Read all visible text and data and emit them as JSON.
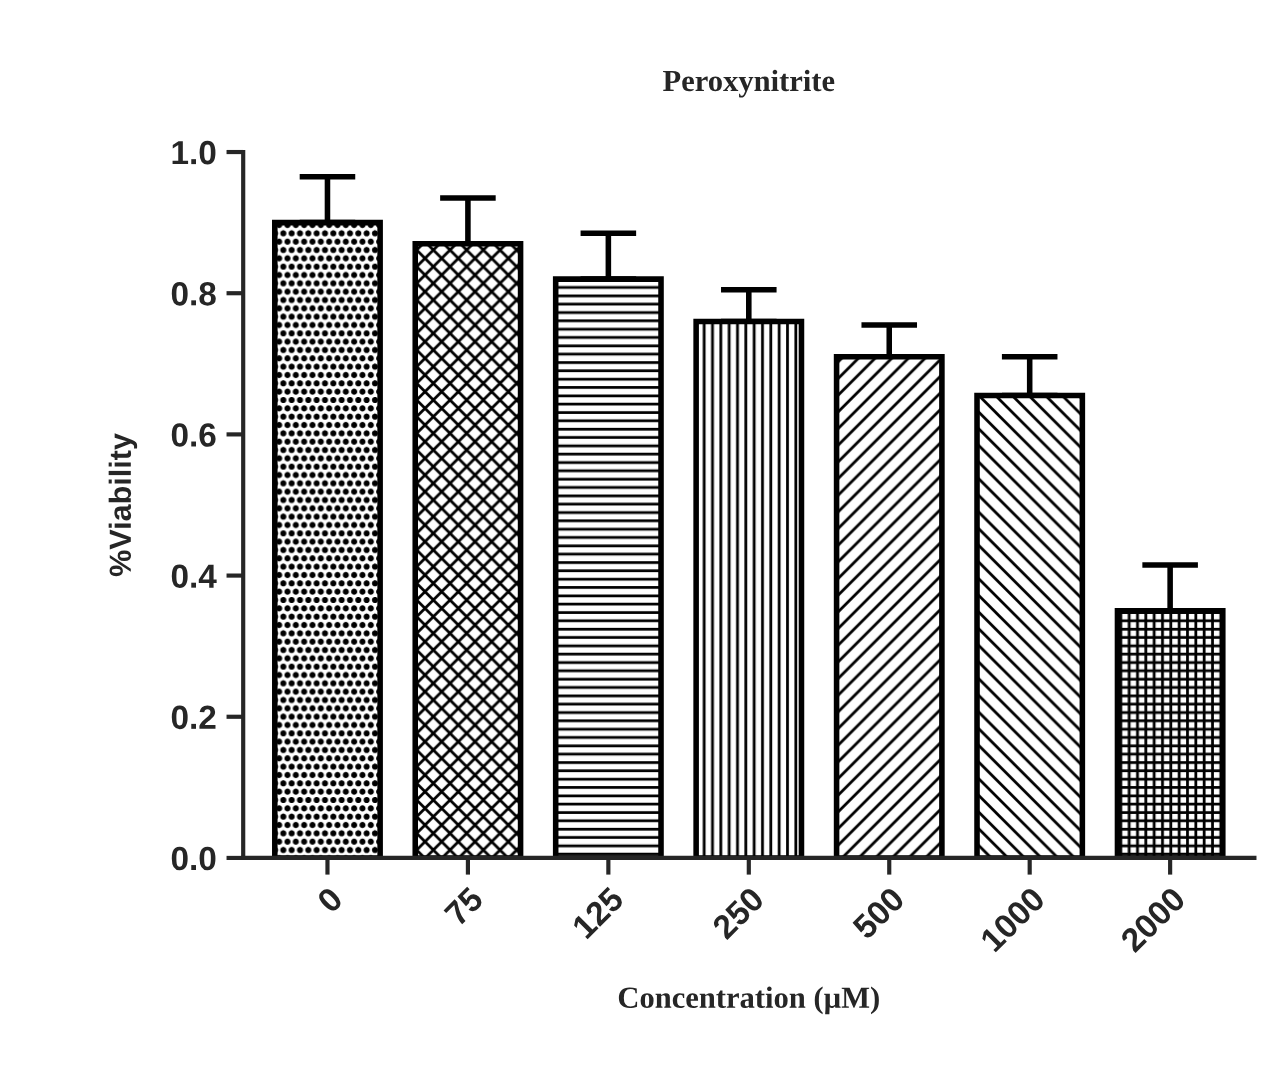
{
  "chart_data": {
    "type": "bar",
    "title": "Peroxynitrite",
    "xlabel": "Concentration (µM)",
    "ylabel": "%Viability",
    "categories": [
      "0",
      "75",
      "125",
      "250",
      "500",
      "1000",
      "2000"
    ],
    "values": [
      0.9,
      0.87,
      0.82,
      0.76,
      0.71,
      0.655,
      0.35
    ],
    "errors": [
      [
        0.9,
        0.965
      ],
      [
        0.87,
        0.935
      ],
      [
        0.82,
        0.885
      ],
      [
        0.76,
        0.805
      ],
      [
        0.71,
        0.755
      ],
      [
        0.655,
        0.71
      ],
      [
        0.35,
        0.415
      ]
    ],
    "color": "#000000",
    "ylim": [
      0,
      1.0
    ],
    "yticks": [
      {
        "value": 0,
        "label": "0.0"
      },
      {
        "value": 0.2,
        "label": "0.2"
      },
      {
        "value": 0.4,
        "label": "0.4"
      },
      {
        "value": 0.6,
        "label": "0.6"
      },
      {
        "value": 0.8,
        "label": "0.8"
      },
      {
        "value": 1.0,
        "label": "1.0"
      }
    ],
    "grid": false,
    "legend": false
  }
}
